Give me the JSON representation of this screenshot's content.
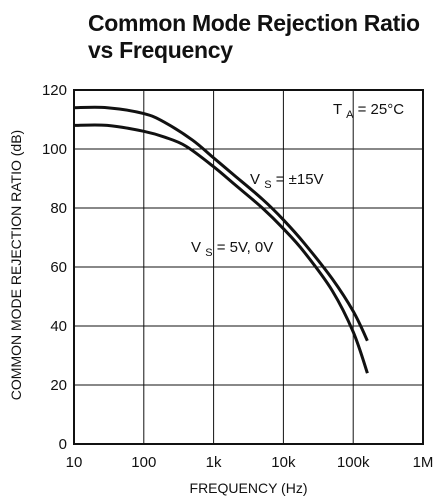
{
  "title": {
    "line1": "Common Mode Rejection Ratio",
    "line2": "vs Frequency"
  },
  "annotations": {
    "ta": {
      "main": "T",
      "sub": "A",
      "rest": " = 25°C"
    },
    "vs15": {
      "main": "V",
      "sub": "S",
      "rest": " = ±15V"
    },
    "vs5": {
      "main": "V",
      "sub": "S",
      "rest": " = 5V, 0V"
    }
  },
  "chart_data": {
    "type": "line",
    "title": "Common Mode Rejection Ratio vs Frequency",
    "xlabel": "FREQUENCY (Hz)",
    "ylabel": "COMMON MODE REJECTION RATIO (dB)",
    "x_scale": "log",
    "xlim": [
      10,
      1000000
    ],
    "ylim": [
      0,
      120
    ],
    "grid": true,
    "x_ticks": [
      {
        "value": 10,
        "label": "10"
      },
      {
        "value": 100,
        "label": "100"
      },
      {
        "value": 1000,
        "label": "1k"
      },
      {
        "value": 10000,
        "label": "10k"
      },
      {
        "value": 100000,
        "label": "100k"
      },
      {
        "value": 1000000,
        "label": "1M"
      }
    ],
    "y_ticks": [
      {
        "value": 0,
        "label": "0"
      },
      {
        "value": 20,
        "label": "20"
      },
      {
        "value": 40,
        "label": "40"
      },
      {
        "value": 60,
        "label": "60"
      },
      {
        "value": 80,
        "label": "80"
      },
      {
        "value": 100,
        "label": "100"
      },
      {
        "value": 120,
        "label": "120"
      }
    ],
    "series": [
      {
        "name": "VS = ±15V",
        "x": [
          10,
          30,
          100,
          200,
          500,
          1000,
          2000,
          5000,
          10000,
          20000,
          50000,
          100000,
          160000
        ],
        "y": [
          114,
          114,
          112,
          109,
          103,
          97,
          91,
          83,
          76,
          68,
          56,
          45,
          35
        ]
      },
      {
        "name": "VS = 5V, 0V",
        "x": [
          10,
          30,
          100,
          200,
          400,
          1000,
          2000,
          5000,
          10000,
          20000,
          50000,
          100000,
          160000
        ],
        "y": [
          108,
          108,
          106,
          104,
          101,
          94,
          88,
          80,
          73,
          65,
          52,
          38,
          24
        ]
      }
    ]
  }
}
